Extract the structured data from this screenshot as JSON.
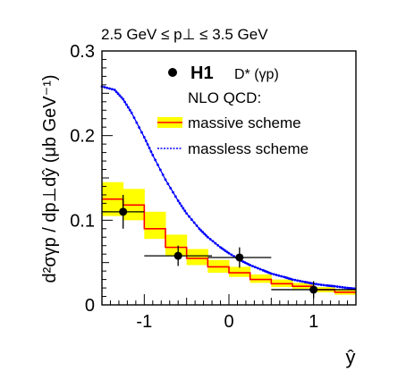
{
  "chart_data": {
    "type": "line",
    "title": "2.5 GeV ≤ p⊥ ≤ 3.5 GeV",
    "ylabel": "d²σγp / dp⊥dŷ (μb GeV⁻¹)",
    "xlabel": "ŷ",
    "xlim": [
      -1.5,
      1.5
    ],
    "ylim": [
      0,
      0.3
    ],
    "xticks": [
      -1,
      0,
      1
    ],
    "xtick_labels": [
      "-1",
      "0",
      "1"
    ],
    "yticks": [
      0,
      0.1,
      0.2,
      0.3
    ],
    "ytick_labels": [
      "0",
      "0.1",
      "0.2",
      "0.3"
    ],
    "legend": {
      "placement": "top-right",
      "data_label": "H1",
      "data_sublabel": "D* (γp)",
      "header": "NLO QCD:",
      "massive_label": "massive scheme",
      "massless_label": "massless scheme"
    },
    "series": [
      {
        "name": "H1",
        "kind": "data",
        "points": [
          {
            "x": -1.25,
            "y": 0.11,
            "xerr": 0.25,
            "yerr": 0.02
          },
          {
            "x": -0.6,
            "y": 0.058,
            "xerr": 0.4,
            "yerr": 0.012
          },
          {
            "x": 0.125,
            "y": 0.056,
            "xerr": 0.375,
            "yerr": 0.012
          },
          {
            "x": 1.0,
            "y": 0.018,
            "xerr": 0.5,
            "yerr": 0.01
          }
        ]
      },
      {
        "name": "massive scheme",
        "kind": "band",
        "bins": [
          {
            "x0": -1.5,
            "x1": -1.25,
            "y": 0.125,
            "lo": 0.105,
            "hi": 0.145
          },
          {
            "x0": -1.25,
            "x1": -1.0,
            "y": 0.118,
            "lo": 0.1,
            "hi": 0.137
          },
          {
            "x0": -1.0,
            "x1": -0.75,
            "y": 0.09,
            "lo": 0.078,
            "hi": 0.11
          },
          {
            "x0": -0.75,
            "x1": -0.5,
            "y": 0.068,
            "lo": 0.058,
            "hi": 0.083
          },
          {
            "x0": -0.5,
            "x1": -0.25,
            "y": 0.055,
            "lo": 0.047,
            "hi": 0.066
          },
          {
            "x0": -0.25,
            "x1": 0.0,
            "y": 0.045,
            "lo": 0.038,
            "hi": 0.053
          },
          {
            "x0": 0.0,
            "x1": 0.25,
            "y": 0.038,
            "lo": 0.033,
            "hi": 0.045
          },
          {
            "x0": 0.25,
            "x1": 0.5,
            "y": 0.03,
            "lo": 0.026,
            "hi": 0.036
          },
          {
            "x0": 0.5,
            "x1": 0.75,
            "y": 0.025,
            "lo": 0.021,
            "hi": 0.03
          },
          {
            "x0": 0.75,
            "x1": 1.0,
            "y": 0.022,
            "lo": 0.019,
            "hi": 0.026
          },
          {
            "x0": 1.0,
            "x1": 1.25,
            "y": 0.018,
            "lo": 0.015,
            "hi": 0.021
          },
          {
            "x0": 1.25,
            "x1": 1.5,
            "y": 0.015,
            "lo": 0.012,
            "hi": 0.018
          }
        ]
      },
      {
        "name": "massless scheme",
        "kind": "curve",
        "x": [
          -1.5,
          -1.35,
          -1.25,
          -1.15,
          -1.0,
          -0.9,
          -0.75,
          -0.6,
          -0.5,
          -0.35,
          -0.25,
          -0.1,
          0.0,
          0.15,
          0.25,
          0.4,
          0.5,
          0.65,
          0.75,
          0.9,
          1.0,
          1.15,
          1.25,
          1.4,
          1.5
        ],
        "y": [
          0.258,
          0.254,
          0.243,
          0.227,
          0.198,
          0.177,
          0.148,
          0.123,
          0.108,
          0.09,
          0.08,
          0.068,
          0.061,
          0.052,
          0.047,
          0.041,
          0.037,
          0.033,
          0.03,
          0.027,
          0.025,
          0.023,
          0.022,
          0.02,
          0.019
        ]
      }
    ],
    "colors": {
      "band_fill": "#ffff00",
      "band_line": "#ff0000",
      "massless_line": "#0000ff",
      "data_marker": "#000000"
    }
  }
}
